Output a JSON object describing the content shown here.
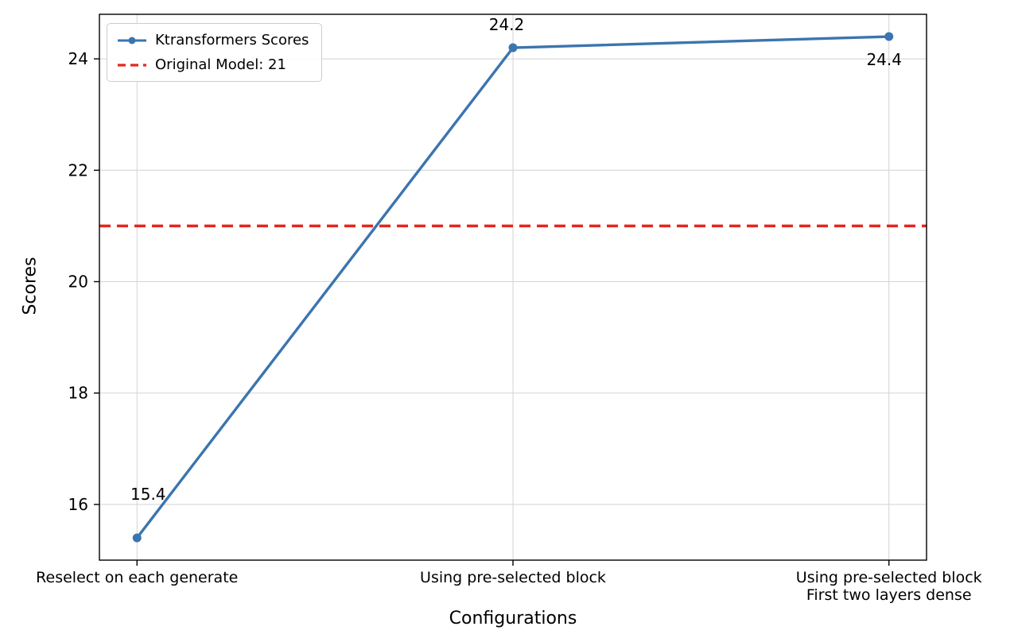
{
  "chart_data": {
    "type": "line",
    "title": "",
    "xlabel": "Configurations",
    "ylabel": "Scores",
    "categories": [
      "Reselect on each generate",
      "Using pre-selected block",
      "Using pre-selected block\nFirst two layers dense"
    ],
    "series": [
      {
        "name": "Ktransformers Scores",
        "values": [
          15.4,
          24.2,
          24.4
        ],
        "color": "#3b75af",
        "annotations": [
          "15.4",
          "24.2",
          "24.4"
        ]
      }
    ],
    "reference_line": {
      "label": "Original Model: 21",
      "value": 21,
      "color": "#e4261f",
      "style": "dashed"
    },
    "yticks": [
      "16",
      "18",
      "20",
      "22",
      "24"
    ],
    "ylim": [
      15.0,
      24.8
    ],
    "grid": true,
    "grid_color": "#d3d3d3",
    "legend_position": "upper-left"
  }
}
